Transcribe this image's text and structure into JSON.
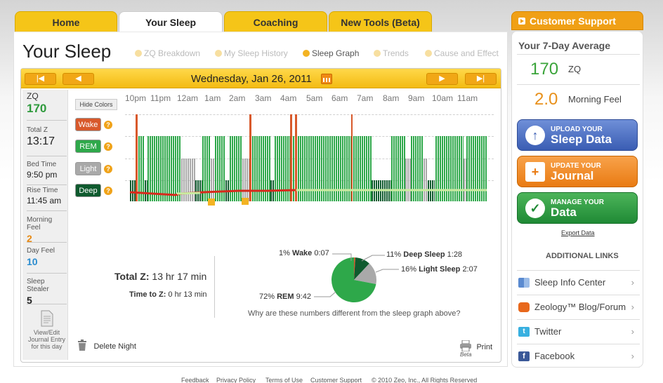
{
  "tabs": [
    {
      "label": "Home"
    },
    {
      "label": "Your Sleep"
    },
    {
      "label": "Coaching"
    },
    {
      "label": "New Tools (Beta)"
    }
  ],
  "page_title": "Your Sleep",
  "subnav": [
    "ZQ Breakdown",
    "My Sleep History",
    "Sleep Graph",
    "Trends",
    "Cause and Effect"
  ],
  "date": "Wednesday, Jan 26, 2011",
  "nav_buttons": {
    "first": "|◀",
    "prev": "◀",
    "next": "▶",
    "last": "▶|"
  },
  "sidebar": {
    "zq_label": "ZQ",
    "zq_value": "170",
    "totalz_label": "Total Z",
    "totalz_value": "13:17",
    "bedtime_label": "Bed Time",
    "bedtime_value": "9:50 pm",
    "risetime_label": "Rise Time",
    "risetime_value": "11:45 am",
    "morningfeel_label": "Morning Feel",
    "morningfeel_value": "2",
    "dayfeel_label": "Day Feel",
    "dayfeel_value": "10",
    "stealer_label": "Sleep Stealer",
    "stealer_value": "5",
    "journal_label": "View/Edit Journal Entry for this day"
  },
  "graph": {
    "hide_colors": "Hide Colors",
    "hours": [
      "10pm",
      "11pm",
      "12am",
      "1am",
      "2am",
      "3am",
      "4am",
      "5am",
      "6am",
      "7am",
      "8am",
      "9am",
      "10am",
      "11am"
    ],
    "stages": [
      "Wake",
      "REM",
      "Light",
      "Deep"
    ],
    "colors": {
      "wake": "#d8592b",
      "rem": "#2ea84a",
      "light": "#a9a9a9",
      "deep": "#0f5a2e",
      "accent": "#f5c518"
    }
  },
  "summary": {
    "total_z_label": "Total Z:",
    "total_z_value": "13 hr 17 min",
    "time_to_z_label": "Time to Z:",
    "time_to_z_value": "0 hr 13 min"
  },
  "pie": {
    "wake": {
      "pct": "1%",
      "name": "Wake",
      "time": "0:07",
      "value": 1
    },
    "deep": {
      "pct": "11%",
      "name": "Deep Sleep",
      "time": "1:28",
      "value": 11
    },
    "light": {
      "pct": "16%",
      "name": "Light Sleep",
      "time": "2:07",
      "value": 16
    },
    "rem": {
      "pct": "72%",
      "name": "REM",
      "time": "9:42",
      "value": 72
    },
    "question": "Why are these numbers different from the sleep graph above?"
  },
  "delete_night": "Delete Night",
  "print": {
    "label": "Print",
    "beta": "Beta"
  },
  "right": {
    "support": "Customer Support",
    "avg_title": "Your 7-Day Average",
    "zq_value": "170",
    "zq_label": "ZQ",
    "feel_value": "2.0",
    "feel_label": "Morning Feel",
    "upload_small": "UPLOAD YOUR",
    "upload_large": "Sleep Data",
    "journal_small": "UPDATE YOUR",
    "journal_large": "Journal",
    "manage_small": "MANAGE YOUR",
    "manage_large": "Data",
    "export": "Export Data",
    "additional": "ADDITIONAL LINKS",
    "links": [
      "Sleep Info Center",
      "Zeology™ Blog/Forum",
      "Twitter",
      "Facebook"
    ]
  },
  "footer": [
    "Feedback",
    "Privacy Policy",
    "Terms of Use",
    "Customer Support",
    "© 2010 Zeo, Inc., All Rights Reserved"
  ]
}
